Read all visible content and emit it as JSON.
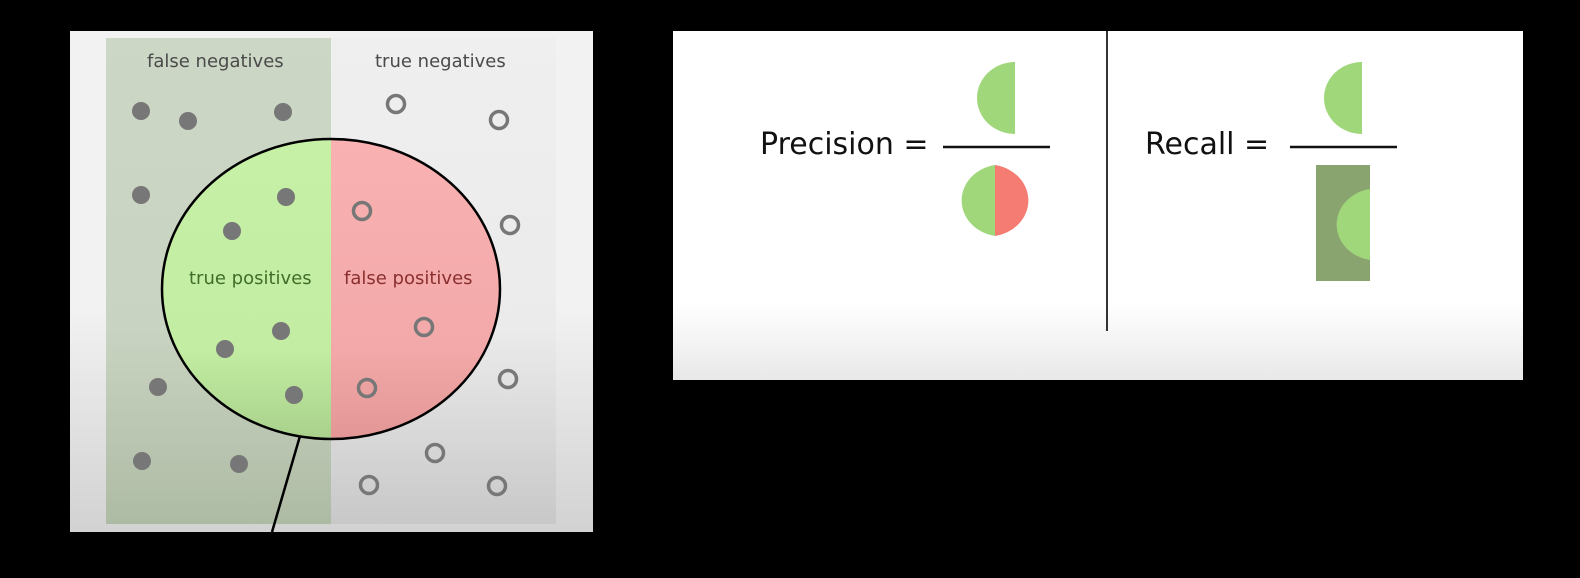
{
  "labels": {
    "false_negatives": "false negatives",
    "true_negatives": "true negatives",
    "true_positives": "true positives",
    "false_positives": "false positives"
  },
  "formulas": {
    "precision": "Precision =",
    "recall": "Recall ="
  },
  "colors": {
    "background": "#000000",
    "relevant_region": "#c8d3bf",
    "true_positive": "#c6f0a6",
    "false_positive": "#f7aaaa",
    "point_dot": "#777777",
    "half_green": "#a0d77a",
    "half_red": "#f47c72",
    "relevant_box": "#8aa46f"
  },
  "point_legend": {
    "relevant": "filled-dot-icon",
    "not_relevant": "hollow-circle-icon"
  }
}
